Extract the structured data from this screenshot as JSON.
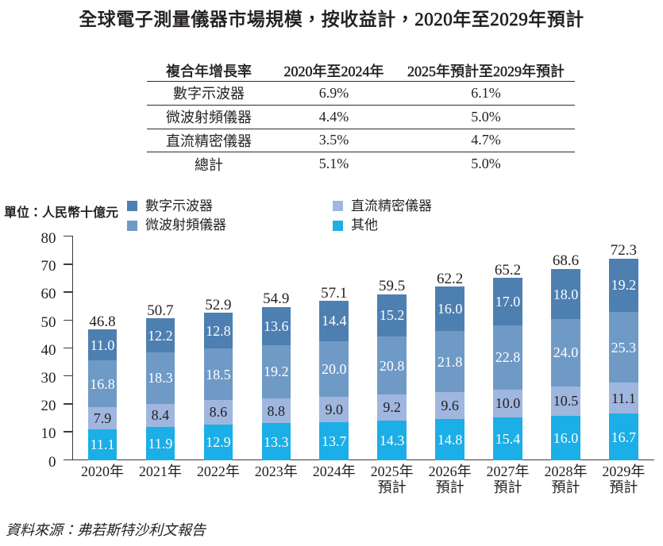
{
  "title": "全球電子測量儀器市場規模，按收益計，2020年至2029年預計",
  "cagr_table": {
    "header": [
      "複合年增長率",
      "2020年至2024年",
      "2025年預計至2029年預計"
    ],
    "rows": [
      [
        "數字示波器",
        "6.9%",
        "6.1%"
      ],
      [
        "微波射頻儀器",
        "4.4%",
        "5.0%"
      ],
      [
        "直流精密儀器",
        "3.5%",
        "4.7%"
      ],
      [
        "總計",
        "5.1%",
        "5.0%"
      ]
    ]
  },
  "unit_label": "單位：人民幣十億元",
  "legend": [
    {
      "label": "數字示波器",
      "color": "#4e7fb1"
    },
    {
      "label": "微波射頻儀器",
      "color": "#6f9ac6"
    },
    {
      "label": "直流精密儀器",
      "color": "#9fb6de"
    },
    {
      "label": "其他",
      "color": "#1caee6"
    }
  ],
  "chart_data": {
    "type": "bar",
    "stacked": true,
    "title": "全球電子測量儀器市場規模，按收益計，2020年至2029年預計",
    "unit": "單位：人民幣十億元",
    "categories": [
      "2020年",
      "2021年",
      "2022年",
      "2023年",
      "2024年",
      "2025年\n預計",
      "2026年\n預計",
      "2027年\n預計",
      "2028年\n預計",
      "2029年\n預計"
    ],
    "series": [
      {
        "name": "其他",
        "color": "#1caee6",
        "label_color": "#ffffff",
        "values": [
          11.1,
          11.9,
          12.9,
          13.3,
          13.7,
          14.3,
          14.8,
          15.4,
          16.0,
          16.7
        ]
      },
      {
        "name": "直流精密儀器",
        "color": "#9fb6de",
        "label_color": "#231f20",
        "values": [
          7.9,
          8.4,
          8.6,
          8.8,
          9.0,
          9.2,
          9.6,
          10.0,
          10.5,
          11.1
        ]
      },
      {
        "name": "微波射頻儀器",
        "color": "#6f9ac6",
        "label_color": "#ffffff",
        "values": [
          16.8,
          18.3,
          18.5,
          19.2,
          20.0,
          20.8,
          21.8,
          22.8,
          24.0,
          25.3
        ]
      },
      {
        "name": "數字示波器",
        "color": "#4e7fb1",
        "label_color": "#ffffff",
        "values": [
          11.0,
          12.2,
          12.8,
          13.6,
          14.4,
          15.2,
          16.0,
          17.0,
          18.0,
          19.2
        ]
      }
    ],
    "totals": [
      46.8,
      50.7,
      52.9,
      54.9,
      57.1,
      59.5,
      62.2,
      65.2,
      68.6,
      72.3
    ],
    "ylim": [
      0,
      80
    ],
    "ytick_step": 10,
    "grid": false,
    "legend_position": "top-left"
  },
  "source": "資料來源：弗若斯特沙利文報告"
}
